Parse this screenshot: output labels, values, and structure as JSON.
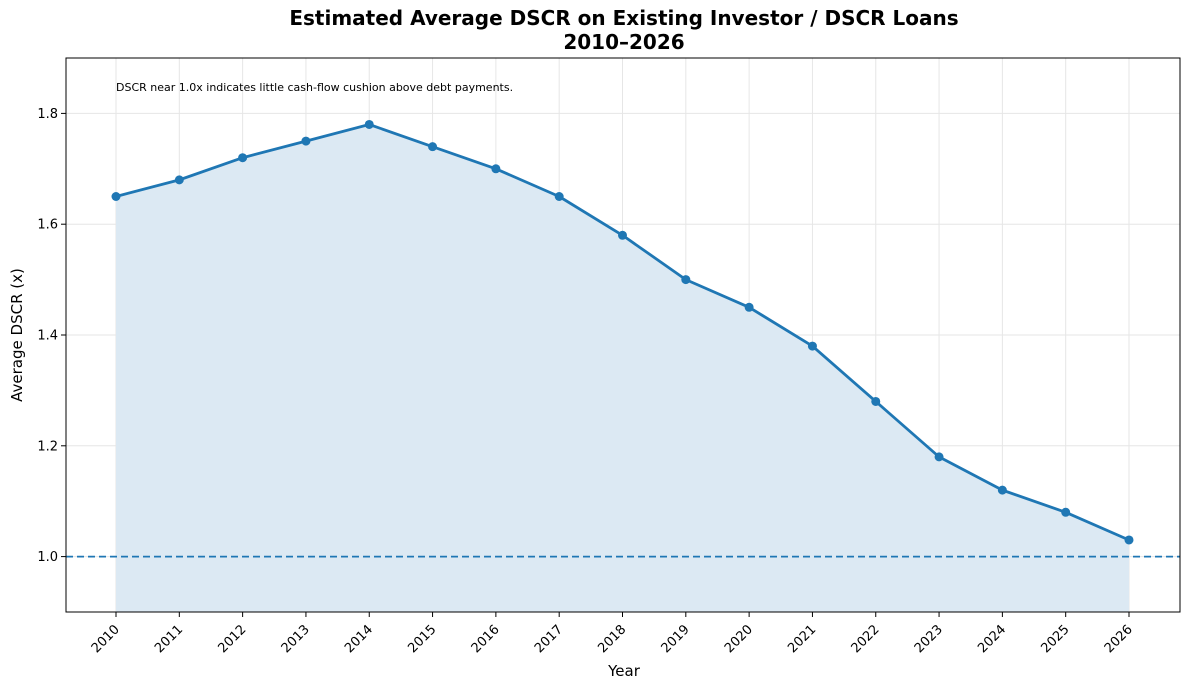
{
  "chart_data": {
    "type": "area",
    "title": "Estimated Average DSCR on Existing Investor / DSCR Loans",
    "subtitle": "2010–2026",
    "xlabel": "Year",
    "ylabel": "Average DSCR (x)",
    "x": [
      "2010",
      "2011",
      "2012",
      "2013",
      "2014",
      "2015",
      "2016",
      "2017",
      "2018",
      "2019",
      "2020",
      "2021",
      "2022",
      "2023",
      "2024",
      "2025",
      "2026"
    ],
    "series": [
      {
        "values": [
          1.65,
          1.68,
          1.72,
          1.75,
          1.78,
          1.74,
          1.7,
          1.65,
          1.58,
          1.5,
          1.45,
          1.38,
          1.28,
          1.18,
          1.12,
          1.08,
          1.03
        ]
      }
    ],
    "ylim": [
      0.9,
      1.9
    ],
    "yticks": [
      "1.0",
      "1.2",
      "1.4",
      "1.6",
      "1.8"
    ],
    "reference_line": {
      "y": 1.0,
      "style": "dashed"
    },
    "annotation": "DSCR near 1.0x indicates little cash-flow cushion above debt payments.",
    "grid": true,
    "colors": {
      "line": "#1f77b4",
      "fill": "#dce9f3",
      "grid": "#e6e6e6"
    }
  }
}
